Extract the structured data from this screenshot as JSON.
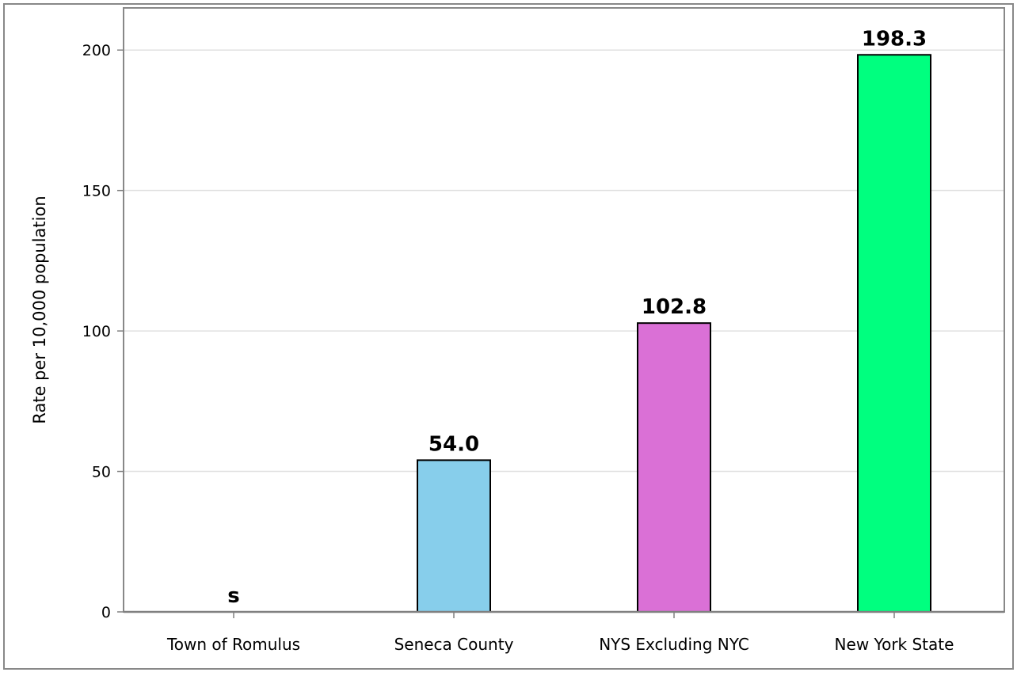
{
  "chart_data": {
    "type": "bar",
    "title": "",
    "xlabel": "",
    "ylabel": "Rate per 10,000 population",
    "categories": [
      "Town of Romulus",
      "Seneca County",
      "NYS Excluding NYC",
      "New York State"
    ],
    "values": [
      null,
      54.0,
      102.8,
      198.3
    ],
    "data_labels": [
      "s",
      "54.0",
      "102.8",
      "198.3"
    ],
    "colors": [
      "#ffffff",
      "#87ceeb",
      "#da70d6",
      "#00ff7f"
    ],
    "ylim": [
      0,
      215
    ],
    "yticks": [
      0,
      50,
      100,
      150,
      200
    ],
    "grid": true,
    "legend": "none"
  },
  "colors": {
    "bar_outline": "#000000",
    "gridline": "#e0e0e0",
    "frame": "#888888",
    "axis": "#808080"
  }
}
